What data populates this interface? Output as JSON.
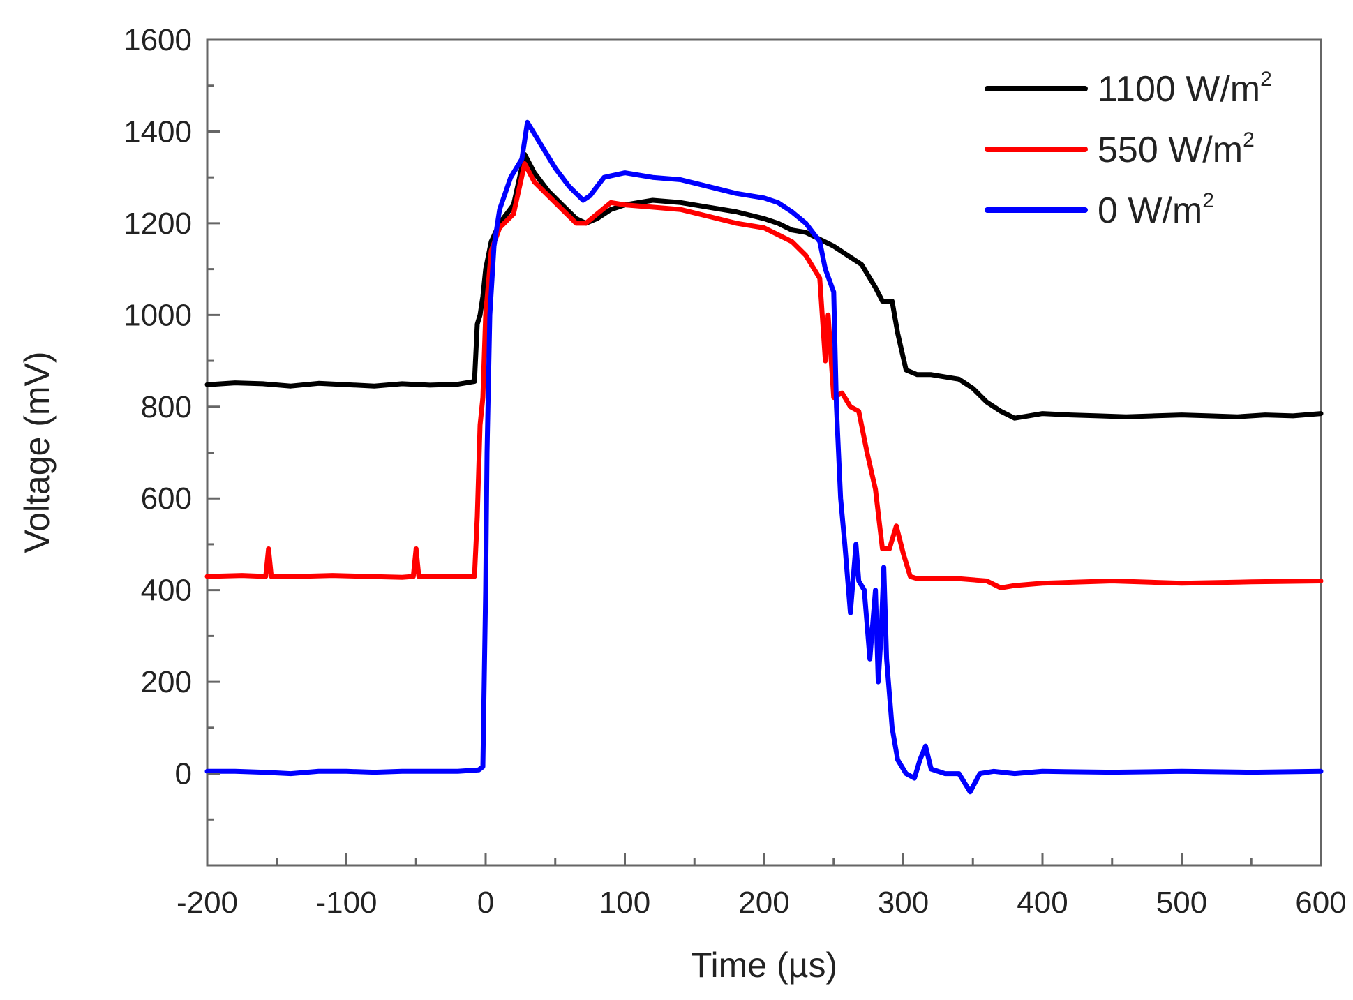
{
  "chart_data": {
    "type": "line",
    "title": "",
    "xlabel": "Time (µs)",
    "ylabel": "Voltage (mV)",
    "xlim": [
      -200,
      600
    ],
    "ylim": [
      -200,
      1600
    ],
    "xticks": [
      -200,
      -100,
      0,
      100,
      200,
      300,
      400,
      500,
      600
    ],
    "yticks": [
      0,
      200,
      400,
      600,
      800,
      1000,
      1200,
      1400,
      1600
    ],
    "xtick_labels": [
      "-200",
      "-100",
      "0",
      "100",
      "200",
      "300",
      "400",
      "500",
      "600"
    ],
    "ytick_labels": [
      "0",
      "200",
      "400",
      "600",
      "800",
      "1000",
      "1200",
      "1400",
      "1600"
    ],
    "grid": false,
    "legend_position": "top-right",
    "series": [
      {
        "name": "1100 W/m2",
        "legend_main": "1100 W/m",
        "legend_sup": "2",
        "color": "#000000",
        "x": [
          -200,
          -180,
          -160,
          -140,
          -120,
          -100,
          -80,
          -60,
          -40,
          -20,
          -8,
          -6,
          -4,
          -2,
          0,
          4,
          10,
          20,
          28,
          35,
          45,
          55,
          65,
          72,
          80,
          90,
          100,
          120,
          140,
          160,
          180,
          200,
          210,
          220,
          230,
          240,
          250,
          260,
          270,
          280,
          285,
          292,
          296,
          302,
          310,
          320,
          330,
          340,
          350,
          360,
          370,
          380,
          390,
          400,
          420,
          440,
          460,
          480,
          500,
          520,
          540,
          560,
          580,
          600
        ],
        "y": [
          848,
          852,
          850,
          845,
          851,
          848,
          845,
          850,
          847,
          849,
          855,
          980,
          1000,
          1040,
          1100,
          1160,
          1200,
          1240,
          1350,
          1310,
          1270,
          1240,
          1210,
          1200,
          1210,
          1230,
          1240,
          1250,
          1245,
          1235,
          1225,
          1210,
          1200,
          1185,
          1180,
          1165,
          1150,
          1130,
          1110,
          1060,
          1030,
          1030,
          960,
          880,
          870,
          870,
          865,
          860,
          840,
          810,
          790,
          775,
          780,
          785,
          782,
          780,
          778,
          780,
          782,
          780,
          778,
          782,
          780,
          785
        ]
      },
      {
        "name": "550 W/m2",
        "legend_main": "550 W/m",
        "legend_sup": "2",
        "color": "#ff0000",
        "x": [
          -200,
          -175,
          -158,
          -156,
          -154,
          -135,
          -110,
          -85,
          -60,
          -52,
          -50,
          -48,
          -30,
          -15,
          -8,
          -6,
          -4,
          -2,
          0,
          4,
          10,
          20,
          28,
          35,
          45,
          55,
          65,
          72,
          80,
          90,
          100,
          120,
          140,
          160,
          180,
          200,
          210,
          220,
          230,
          240,
          244,
          246,
          250,
          256,
          262,
          268,
          274,
          280,
          285,
          290,
          295,
          300,
          305,
          310,
          320,
          340,
          360,
          370,
          380,
          400,
          450,
          500,
          550,
          600
        ],
        "y": [
          430,
          432,
          430,
          490,
          430,
          430,
          432,
          430,
          428,
          430,
          490,
          430,
          430,
          430,
          430,
          560,
          760,
          820,
          1000,
          1140,
          1190,
          1220,
          1330,
          1290,
          1260,
          1230,
          1200,
          1200,
          1220,
          1245,
          1240,
          1235,
          1230,
          1215,
          1200,
          1190,
          1175,
          1160,
          1130,
          1080,
          900,
          1000,
          820,
          830,
          800,
          790,
          700,
          620,
          490,
          490,
          540,
          480,
          430,
          425,
          425,
          425,
          420,
          405,
          410,
          415,
          420,
          415,
          418,
          420
        ]
      },
      {
        "name": "0 W/m2",
        "legend_main": "0 W/m",
        "legend_sup": "2",
        "color": "#0000ff",
        "x": [
          -200,
          -180,
          -160,
          -140,
          -120,
          -100,
          -80,
          -60,
          -40,
          -20,
          -5,
          -2,
          0,
          1,
          3,
          6,
          10,
          18,
          26,
          30,
          40,
          50,
          60,
          70,
          75,
          85,
          100,
          120,
          140,
          160,
          180,
          200,
          210,
          220,
          230,
          240,
          244,
          250,
          252,
          255,
          258,
          262,
          266,
          268,
          272,
          276,
          280,
          282,
          284,
          286,
          288,
          292,
          296,
          302,
          308,
          312,
          316,
          320,
          330,
          340,
          348,
          355,
          365,
          380,
          400,
          450,
          500,
          550,
          600
        ],
        "y": [
          5,
          5,
          3,
          0,
          5,
          5,
          3,
          5,
          5,
          5,
          8,
          15,
          400,
          700,
          1000,
          1150,
          1230,
          1300,
          1340,
          1420,
          1370,
          1320,
          1280,
          1250,
          1260,
          1300,
          1310,
          1300,
          1295,
          1280,
          1265,
          1255,
          1245,
          1225,
          1200,
          1160,
          1100,
          1050,
          800,
          600,
          500,
          350,
          500,
          420,
          400,
          250,
          400,
          200,
          300,
          450,
          250,
          100,
          30,
          0,
          -10,
          30,
          60,
          10,
          0,
          0,
          -40,
          0,
          5,
          0,
          5,
          3,
          5,
          3,
          5
        ]
      }
    ]
  }
}
